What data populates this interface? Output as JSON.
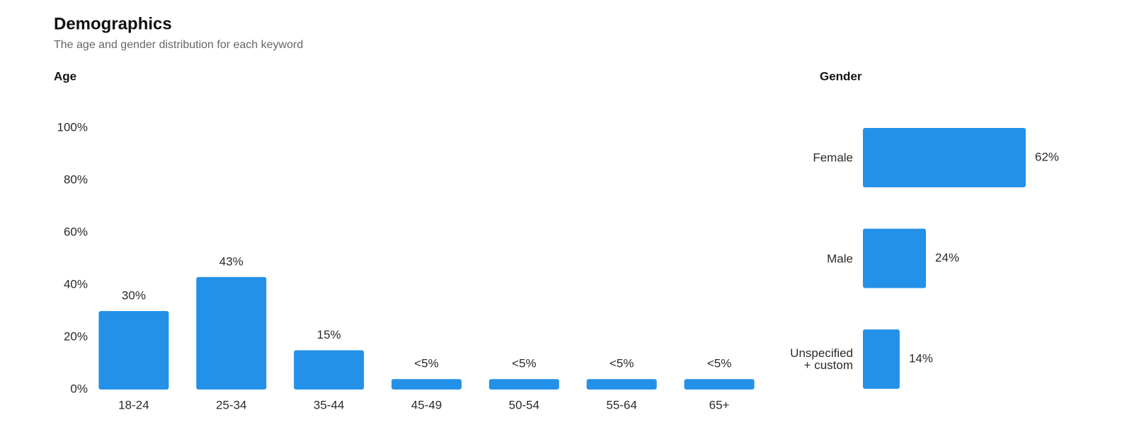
{
  "title": "Demographics",
  "subtitle": "The age and gender distribution for each keyword",
  "chart_data": [
    {
      "type": "bar",
      "title": "Age",
      "categories": [
        "18-24",
        "25-34",
        "35-44",
        "45-49",
        "50-54",
        "55-64",
        "65+"
      ],
      "values": [
        30,
        43,
        15,
        4,
        4,
        4,
        4
      ],
      "value_labels": [
        "30%",
        "43%",
        "15%",
        "<5%",
        "<5%",
        "<5%",
        "<5%"
      ],
      "color": "#2491e8",
      "ylim": [
        0,
        100
      ],
      "yticks": [
        {
          "value": 0,
          "label": "0%"
        },
        {
          "value": 20,
          "label": "20%"
        },
        {
          "value": 40,
          "label": "40%"
        },
        {
          "value": 60,
          "label": "60%"
        },
        {
          "value": 80,
          "label": "80%"
        },
        {
          "value": 100,
          "label": "100%"
        }
      ]
    },
    {
      "type": "hbar",
      "title": "Gender",
      "categories": [
        "Female",
        "Male",
        "Unspecified + custom"
      ],
      "values": [
        62,
        24,
        14
      ],
      "value_labels": [
        "62%",
        "24%",
        "14%"
      ],
      "color": "#2491e8",
      "xlim": [
        0,
        100
      ]
    }
  ]
}
